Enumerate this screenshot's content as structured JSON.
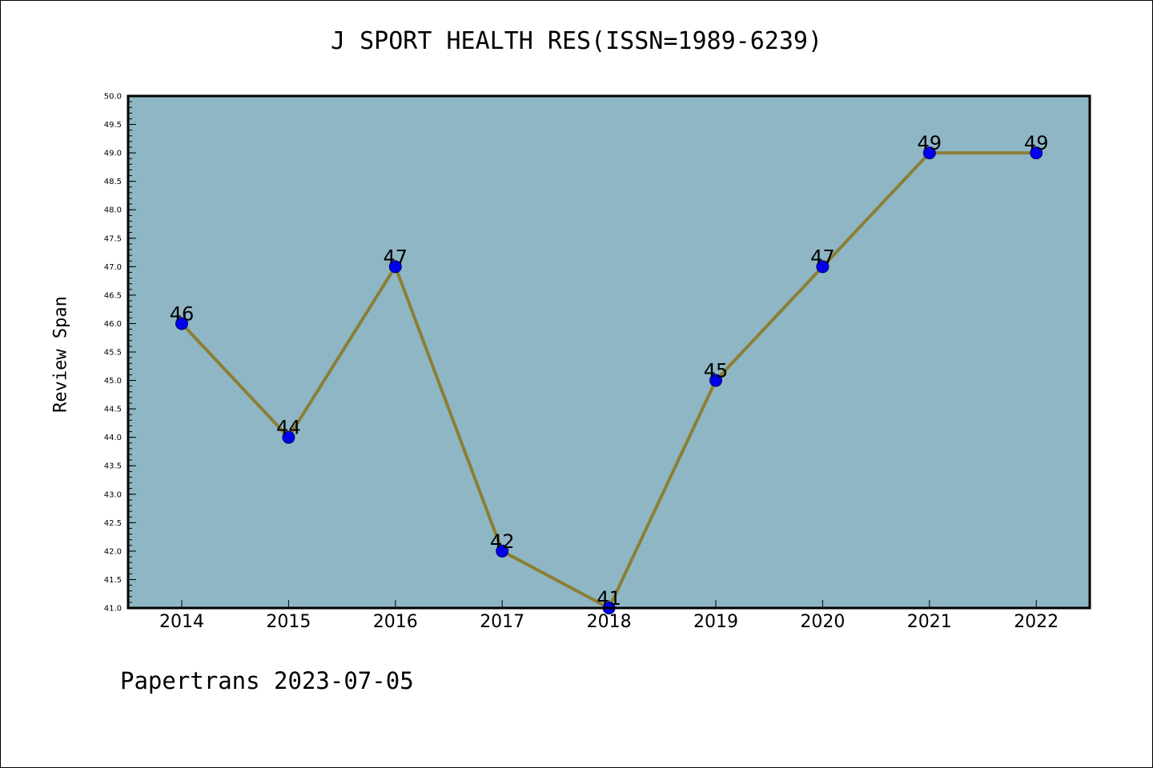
{
  "title": "J SPORT HEALTH RES(ISSN=1989-6239)",
  "footer": "Papertrans 2023-07-05",
  "colors": {
    "plot_background": "#8fb6c4",
    "line": "#8b7f35",
    "marker": "#0000ee",
    "axis": "#000000"
  },
  "chart_data": {
    "type": "line",
    "title": "J SPORT HEALTH RES(ISSN=1989-6239)",
    "xlabel": "",
    "ylabel": "Review Span",
    "categories": [
      "2014",
      "2015",
      "2016",
      "2017",
      "2018",
      "2019",
      "2020",
      "2021",
      "2022"
    ],
    "values": [
      46,
      44,
      47,
      42,
      41,
      45,
      47,
      49,
      49
    ],
    "data_labels": [
      "46",
      "44",
      "47",
      "42",
      "41",
      "45",
      "47",
      "49",
      "49"
    ],
    "ylim": [
      41.0,
      50.0
    ],
    "yticks": [
      "41.0",
      "41.5",
      "42.0",
      "42.5",
      "43.0",
      "43.5",
      "44.0",
      "44.5",
      "45.0",
      "45.5",
      "46.0",
      "46.5",
      "47.0",
      "47.5",
      "48.0",
      "48.5",
      "49.0",
      "49.5",
      "50.0"
    ],
    "grid": false,
    "legend": "none"
  }
}
